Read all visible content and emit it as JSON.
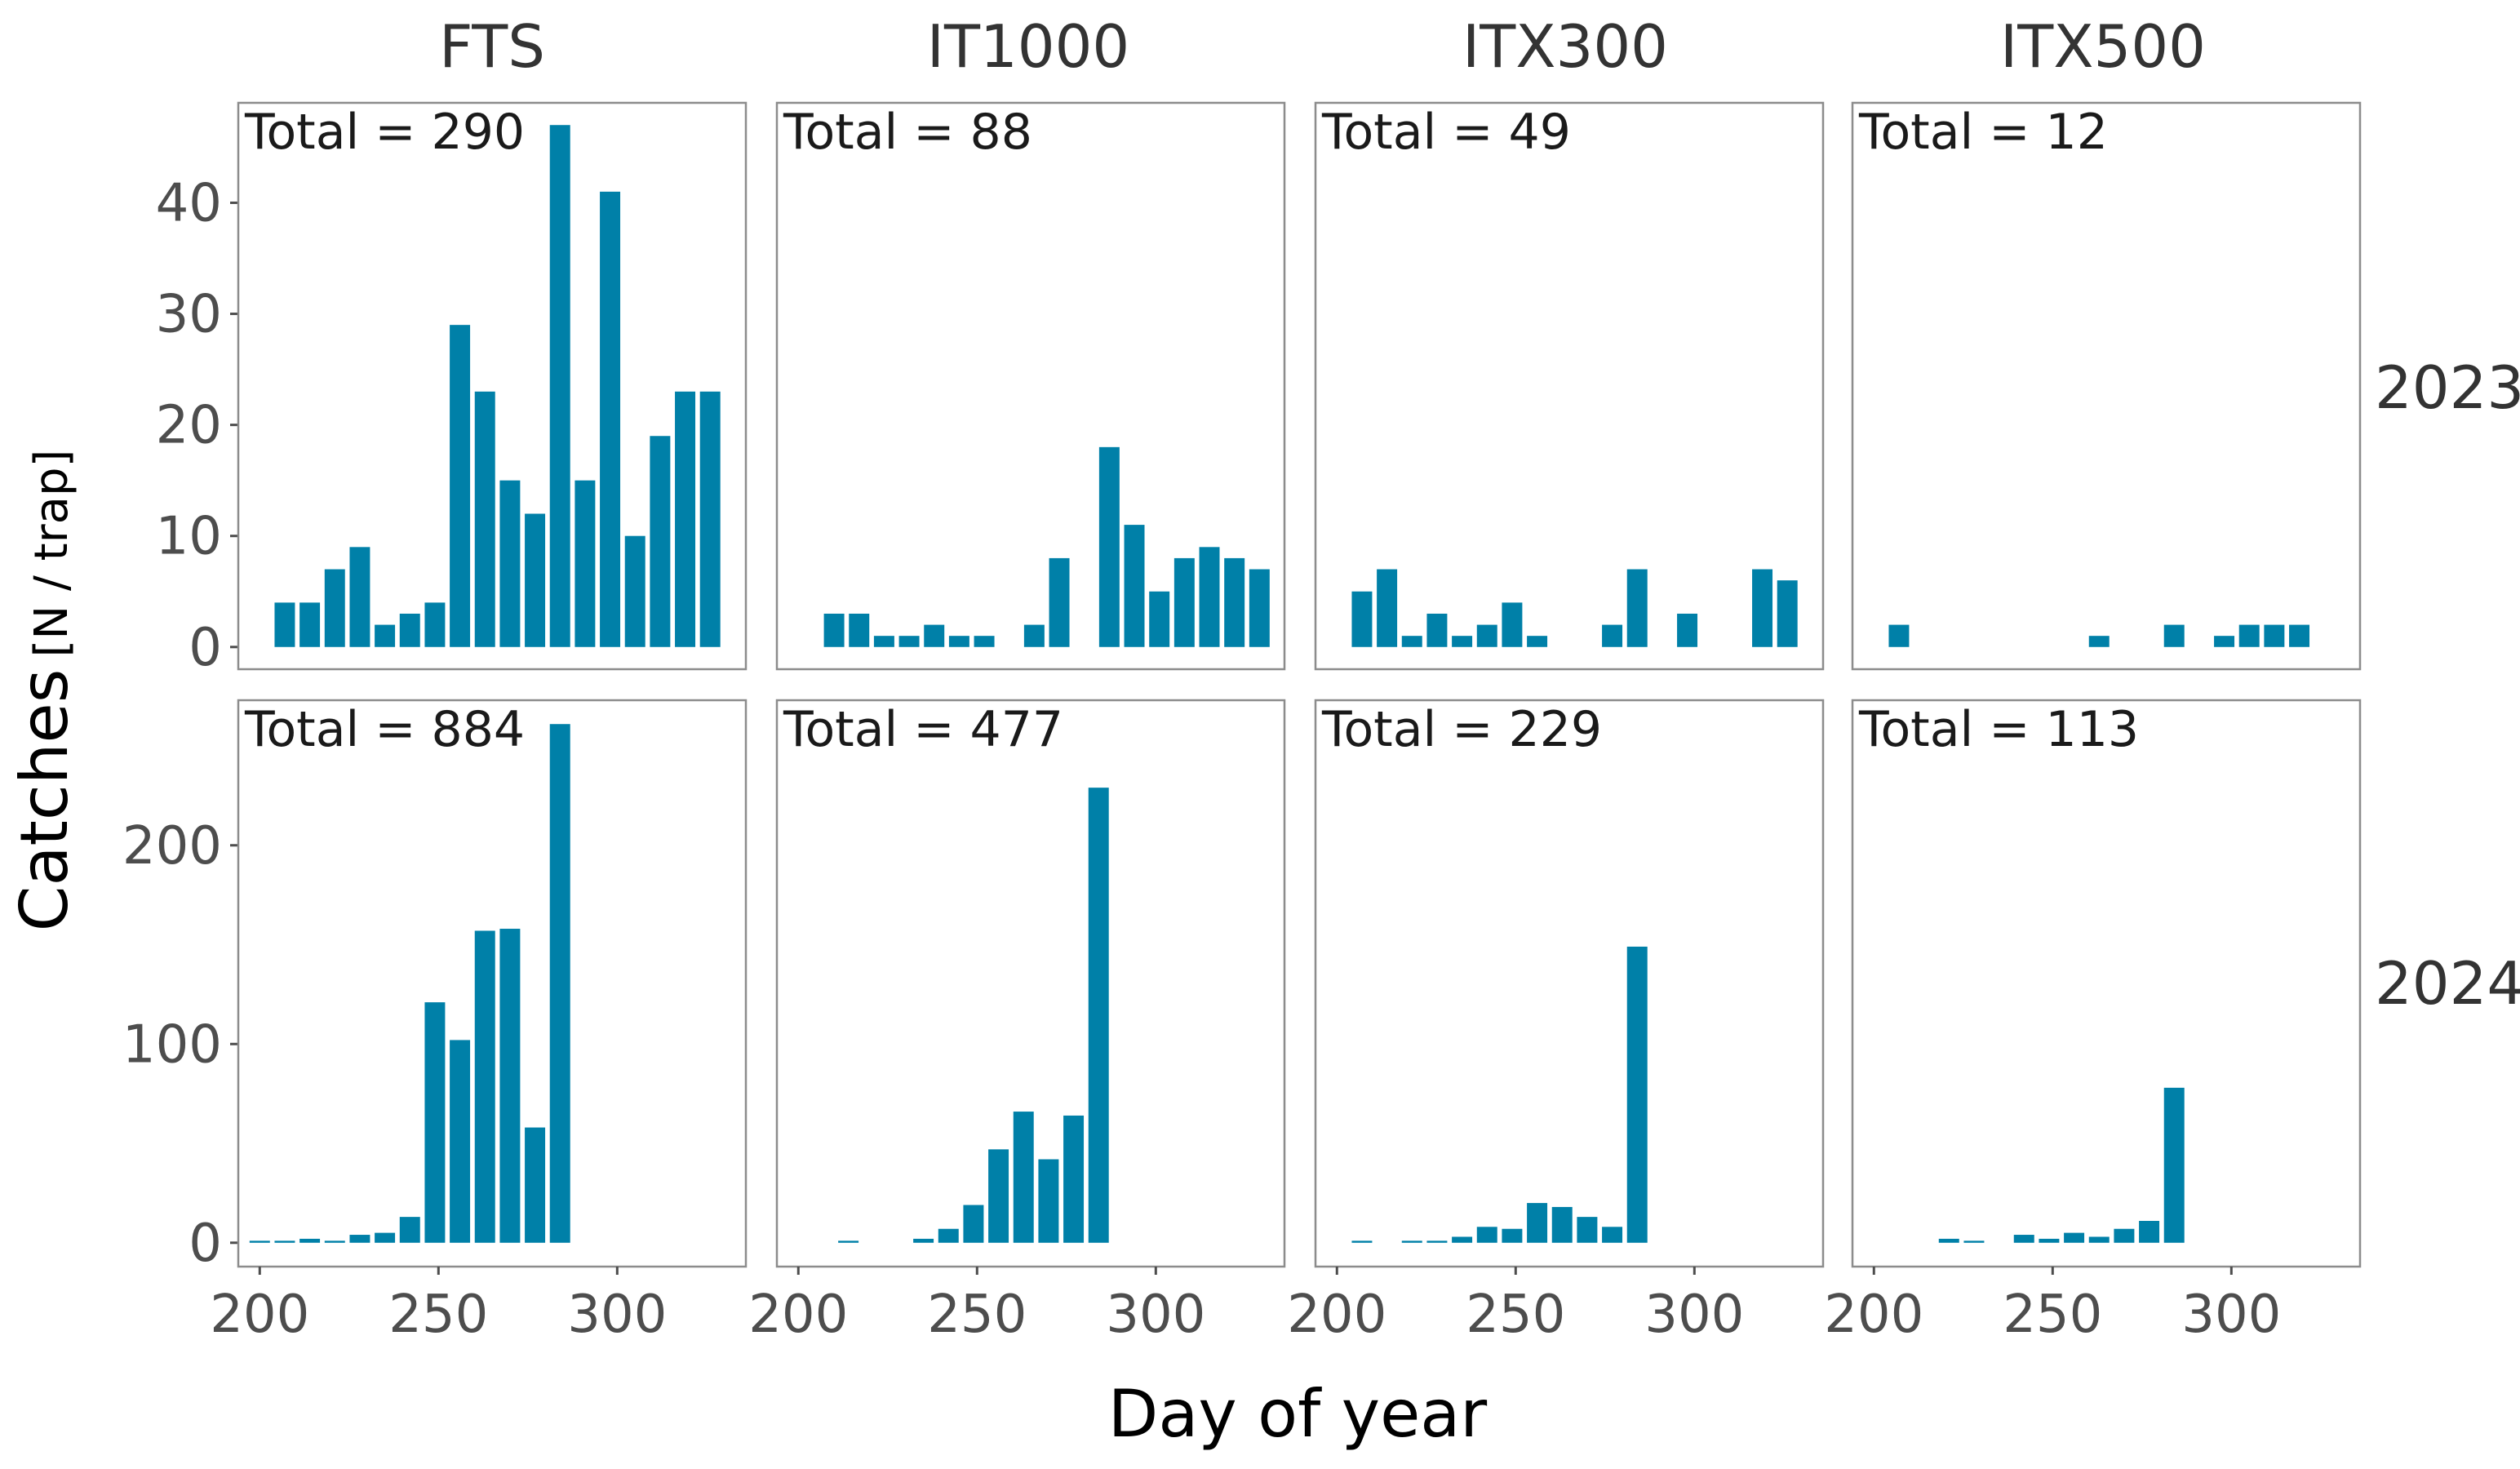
{
  "chart_data": {
    "type": "bar",
    "xlabel": "Day of year",
    "ylabel_main": "Catches",
    "ylabel_unit": "[N / trap]",
    "bar_color": "#0080A8",
    "panel_border_color": "#8c8c8c",
    "xlim": [
      194,
      336
    ],
    "bar_width_days": 5.7,
    "x_ticks": [
      "200",
      "250",
      "300"
    ],
    "x_tick_values": [
      200,
      250,
      300
    ],
    "columns": [
      "FTS",
      "IT1000",
      "ITX300",
      "ITX500"
    ],
    "rows": [
      {
        "label": "2023",
        "ylim": [
          -2,
          49
        ],
        "y_ticks": [
          "0",
          "10",
          "20",
          "30",
          "40"
        ],
        "y_tick_values": [
          0,
          10,
          20,
          30,
          40
        ],
        "panels": [
          {
            "column": "FTS",
            "total_label": "Total = 290",
            "x": [
              207,
              214,
              221,
              228,
              235,
              242,
              249,
              256,
              263,
              270,
              277,
              284,
              291,
              298,
              305,
              312,
              319,
              326
            ],
            "values": [
              4,
              4,
              7,
              9,
              2,
              3,
              4,
              29,
              23,
              15,
              12,
              47,
              15,
              41,
              10,
              19,
              23,
              23
            ]
          },
          {
            "column": "IT1000",
            "total_label": "Total = 88",
            "x": [
              210,
              217,
              224,
              231,
              238,
              245,
              252,
              266,
              273,
              287,
              294,
              301,
              308,
              315,
              322,
              329
            ],
            "values": [
              3,
              3,
              1,
              1,
              2,
              1,
              1,
              2,
              8,
              18,
              11,
              5,
              8,
              9,
              8,
              7
            ]
          },
          {
            "column": "ITX300",
            "total_label": "Total = 49",
            "x": [
              207,
              214,
              221,
              228,
              235,
              242,
              249,
              256,
              277,
              284,
              298,
              319,
              326
            ],
            "values": [
              5,
              7,
              1,
              3,
              1,
              2,
              4,
              1,
              2,
              7,
              3,
              7,
              6
            ]
          },
          {
            "column": "ITX500",
            "total_label": "Total = 12",
            "x": [
              207,
              263,
              284,
              298,
              305,
              312,
              319
            ],
            "values": [
              2,
              1,
              2,
              1,
              2,
              2,
              2
            ]
          }
        ]
      },
      {
        "label": "2024",
        "ylim": [
          -12,
          273
        ],
        "y_ticks": [
          "0",
          "100",
          "200"
        ],
        "y_tick_values": [
          0,
          100,
          200
        ],
        "panels": [
          {
            "column": "FTS",
            "total_label": "Total = 884",
            "x": [
              200,
              207,
              214,
              221,
              228,
              235,
              242,
              249,
              256,
              263,
              270,
              277,
              284
            ],
            "values": [
              1,
              1,
              2,
              1,
              4,
              5,
              13,
              121,
              102,
              157,
              158,
              58,
              261
            ]
          },
          {
            "column": "IT1000",
            "total_label": "Total = 477",
            "x": [
              214,
              235,
              242,
              249,
              256,
              263,
              270,
              277,
              284
            ],
            "values": [
              1,
              2,
              7,
              19,
              47,
              66,
              42,
              64,
              229
            ]
          },
          {
            "column": "ITX300",
            "total_label": "Total = 229",
            "x": [
              207,
              221,
              228,
              235,
              242,
              249,
              256,
              263,
              270,
              277,
              284
            ],
            "values": [
              1,
              1,
              1,
              3,
              8,
              7,
              20,
              18,
              13,
              8,
              149
            ]
          },
          {
            "column": "ITX500",
            "total_label": "Total = 113",
            "x": [
              221,
              228,
              242,
              249,
              256,
              263,
              270,
              277,
              284
            ],
            "values": [
              2,
              1,
              4,
              2,
              5,
              3,
              7,
              11,
              78
            ]
          }
        ]
      }
    ]
  }
}
